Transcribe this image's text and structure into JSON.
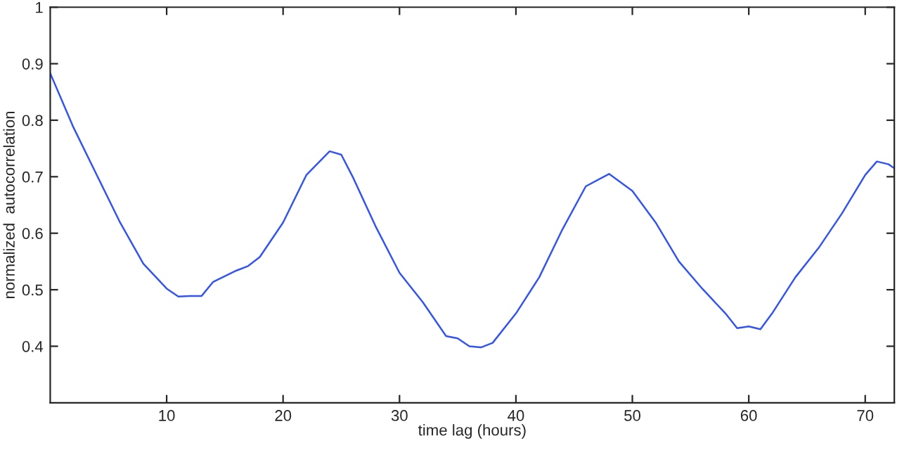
{
  "chart_data": {
    "type": "line",
    "xlabel": "time lag (hours)",
    "ylabel": "normalized  autocorrelation",
    "x": [
      0,
      2,
      4,
      6,
      8,
      10,
      11,
      12,
      13,
      14,
      16,
      17,
      18,
      20,
      22,
      24,
      25,
      26,
      28,
      30,
      32,
      34,
      35,
      36,
      37,
      38,
      40,
      42,
      44,
      46,
      48,
      50,
      52,
      54,
      56,
      58,
      59,
      60,
      61,
      62,
      64,
      66,
      68,
      70,
      71,
      72,
      72.5
    ],
    "series": [
      {
        "color": "#3355ee",
        "values": [
          0.883,
          0.787,
          0.703,
          0.619,
          0.546,
          0.502,
          0.488,
          0.489,
          0.489,
          0.514,
          0.534,
          0.542,
          0.558,
          0.619,
          0.703,
          0.745,
          0.739,
          0.699,
          0.61,
          0.53,
          0.478,
          0.418,
          0.414,
          0.4,
          0.398,
          0.406,
          0.458,
          0.522,
          0.607,
          0.683,
          0.705,
          0.675,
          0.619,
          0.55,
          0.502,
          0.458,
          0.432,
          0.435,
          0.43,
          0.458,
          0.522,
          0.574,
          0.635,
          0.703,
          0.727,
          0.722,
          0.715
        ]
      }
    ],
    "xlim": [
      0,
      72.5
    ],
    "ylim": [
      0.3,
      1
    ],
    "xticks": [
      10,
      20,
      30,
      40,
      50,
      60,
      70
    ],
    "yticks": [
      0.4,
      0.5,
      0.6,
      0.7,
      0.8,
      0.9,
      1
    ],
    "grid": false
  }
}
